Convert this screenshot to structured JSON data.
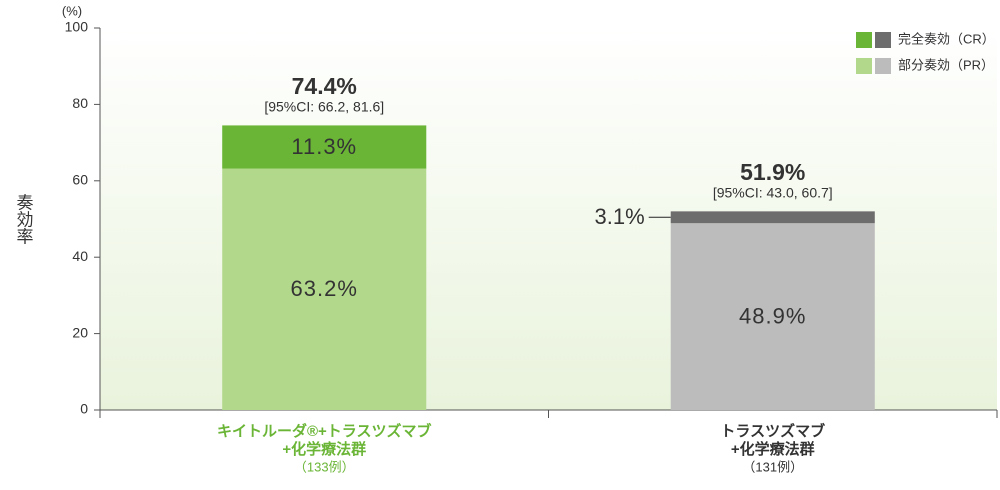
{
  "chart_data": {
    "type": "stacked-bar",
    "y_unit": "(%)",
    "ylabel": "奏効率",
    "ylim": [
      0,
      100
    ],
    "yticks": [
      0,
      20,
      40,
      60,
      80,
      100
    ],
    "categories": [
      [
        "キイトルーダ®+トラスツズマブ",
        "+化学療法群",
        "（133例）"
      ],
      [
        "トラスツズマブ",
        "+化学療法群",
        "（131例）"
      ]
    ],
    "series": [
      {
        "name": "部分奏効（PR）",
        "color": [
          "#b2d88c",
          "#bcbcbc"
        ],
        "values": [
          63.2,
          48.9
        ],
        "value_labels": [
          "63.2%",
          "48.9%"
        ]
      },
      {
        "name": "完全奏効（CR）",
        "color": [
          "#6ab536",
          "#6d6d6d"
        ],
        "values": [
          11.3,
          3.1
        ],
        "value_labels": [
          "11.3%",
          "3.1%"
        ]
      }
    ],
    "totals": {
      "values": [
        74.4,
        51.9
      ],
      "value_labels": [
        "74.4%",
        "51.9%"
      ],
      "color": [
        "#6ab536",
        "#7a7a7a"
      ]
    },
    "ci_labels": [
      "[95%CI: 66.2, 81.6]",
      "[95%CI: 43.0, 60.7]"
    ],
    "legend": "top-right"
  }
}
